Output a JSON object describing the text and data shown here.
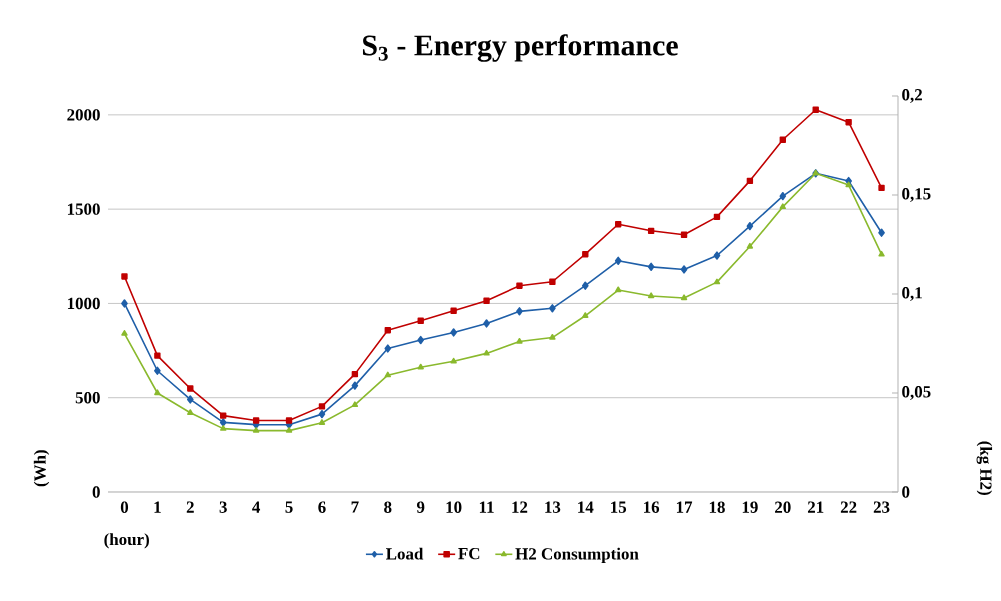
{
  "chart_data": {
    "type": "line",
    "title": "S$_{3}$ - Energy performance",
    "xlabel": "(hour)",
    "ylabel": "(Wh)",
    "y2label": "(kg H2)",
    "categories": [
      "0",
      "1",
      "2",
      "3",
      "4",
      "5",
      "6",
      "7",
      "8",
      "9",
      "10",
      "11",
      "12",
      "13",
      "14",
      "15",
      "16",
      "17",
      "18",
      "19",
      "20",
      "21",
      "22",
      "23"
    ],
    "series": [
      {
        "name": "Load",
        "color": "#1f5fa8",
        "marker": "diamond",
        "values": [
          1000,
          643,
          491,
          369,
          357,
          357,
          413,
          564,
          761,
          806,
          846,
          894,
          958,
          974,
          1094,
          1226,
          1194,
          1180,
          1254,
          1410,
          1569,
          1690,
          1649,
          1375
        ]
      },
      {
        "name": "FC",
        "color": "#c00000",
        "marker": "square",
        "values": [
          1143,
          723,
          549,
          405,
          379,
          379,
          454,
          625,
          858,
          908,
          961,
          1014,
          1094,
          1115,
          1261,
          1420,
          1385,
          1364,
          1459,
          1650,
          1868,
          2027,
          1961,
          1613
        ]
      },
      {
        "name": "H2 Consumption",
        "color": "#8ab92d",
        "marker": "triangle",
        "axis": "y2",
        "values": [
          0.08,
          0.05,
          0.04,
          0.032,
          0.031,
          0.031,
          0.035,
          0.044,
          0.059,
          0.063,
          0.066,
          0.07,
          0.076,
          0.078,
          0.089,
          0.102,
          0.099,
          0.098,
          0.106,
          0.124,
          0.144,
          0.161,
          0.155,
          0.12
        ]
      }
    ],
    "ylim": [
      0,
      2100
    ],
    "yticks": [
      0,
      500,
      1000,
      1500,
      2000
    ],
    "y2lim": [
      0,
      0.2
    ],
    "y2ticks": [
      0,
      {
        "value": 0.05,
        "label": "0,05"
      },
      {
        "value": 0.1,
        "label": "0,1"
      },
      {
        "value": 0.15,
        "label": "0,15"
      },
      {
        "value": 0.2,
        "label": "0,2"
      }
    ],
    "grid": "y",
    "legend": "bottom"
  }
}
